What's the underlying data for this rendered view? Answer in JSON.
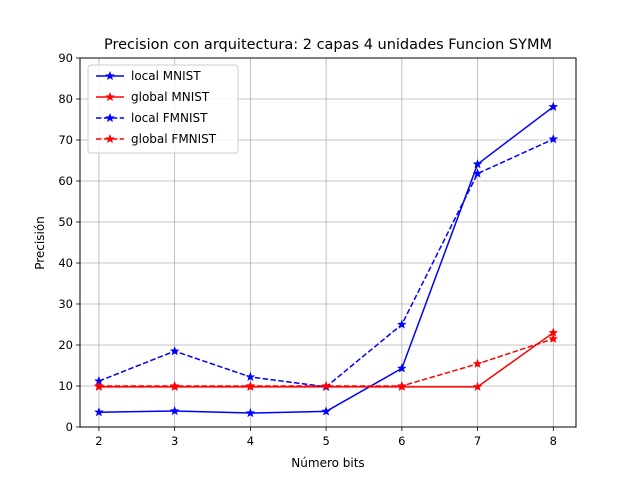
{
  "chart_data": {
    "type": "line",
    "title": "Precision con arquitectura: 2 capas 4 unidades Funcion SYMM",
    "xlabel": "Número bits",
    "ylabel": "Precisión",
    "x": [
      2,
      3,
      4,
      5,
      6,
      7,
      8
    ],
    "xticks": [
      "2",
      "3",
      "4",
      "5",
      "6",
      "7",
      "8"
    ],
    "yticks": [
      "0",
      "10",
      "20",
      "30",
      "40",
      "50",
      "60",
      "70",
      "80",
      "90"
    ],
    "xlim": [
      1.75,
      8.3
    ],
    "ylim": [
      0,
      90
    ],
    "grid": true,
    "legend_position": "top-left",
    "series": [
      {
        "name": "local MNIST",
        "color": "#0000ff",
        "linestyle": "solid",
        "marker": "star",
        "values": [
          3.6,
          3.9,
          3.4,
          3.8,
          14.3,
          64.1,
          78.1
        ]
      },
      {
        "name": "global MNIST",
        "color": "#ff0000",
        "linestyle": "solid",
        "marker": "star",
        "values": [
          9.8,
          9.8,
          9.8,
          9.8,
          9.8,
          9.8,
          23.0
        ]
      },
      {
        "name": "local FMNIST",
        "color": "#0000ff",
        "linestyle": "dashed",
        "marker": "star",
        "values": [
          11.2,
          18.5,
          12.2,
          9.8,
          25.0,
          61.8,
          70.2
        ]
      },
      {
        "name": "global FMNIST",
        "color": "#ff0000",
        "linestyle": "dashed",
        "marker": "star",
        "values": [
          10.0,
          10.0,
          10.0,
          10.0,
          10.0,
          15.4,
          21.5
        ]
      }
    ]
  }
}
